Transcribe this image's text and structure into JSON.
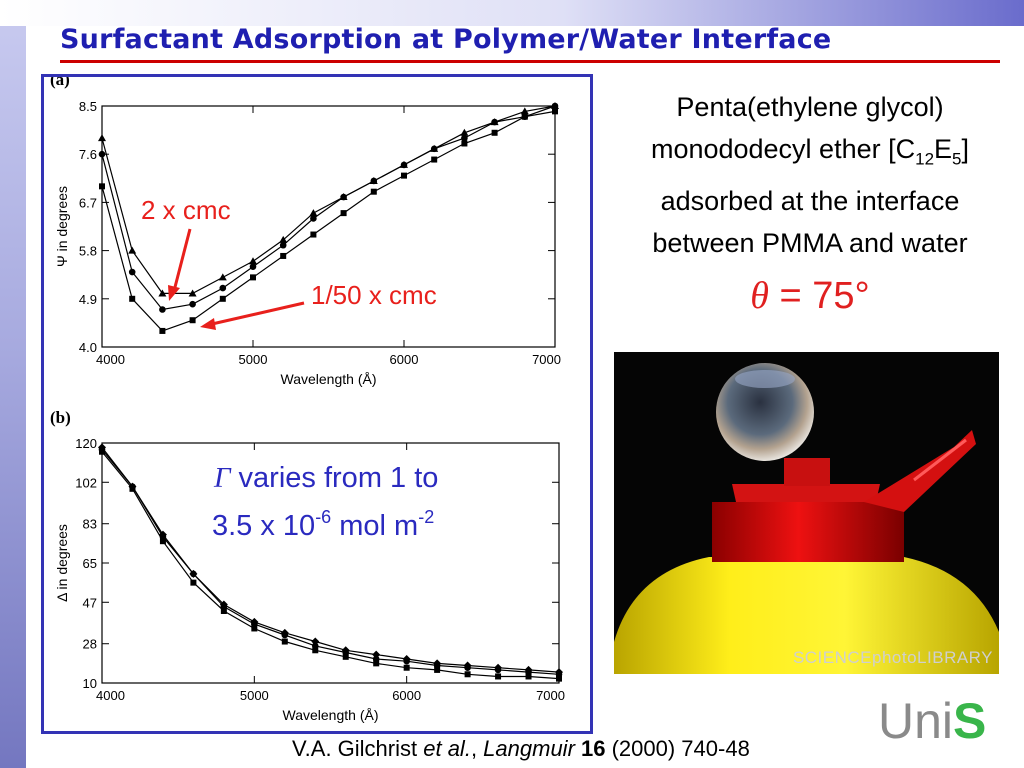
{
  "title": "Surfactant Adsorption at Polymer/Water Interface",
  "colors": {
    "title": "#1f1fb0",
    "frame": "#3333b5",
    "red_annotation": "#e8201c",
    "blue_annotation": "#2a2abf",
    "theta": "#e02020"
  },
  "description": {
    "line1": "Penta(ethylene glycol)",
    "line2_pre": "monododecyl ether [C",
    "line2_sub1": "12",
    "line2_mid": "E",
    "line2_sub2": "5",
    "line2_post": "]",
    "line3": "adsorbed at the interface",
    "line4": "between PMMA and water"
  },
  "contact_angle": {
    "symbol": "θ",
    "equals": "=",
    "value": "75°"
  },
  "photo": {
    "credit": "SCIENCEphotoLIBRARY"
  },
  "citation": {
    "authors": "V.A. Gilchrist ",
    "etal": "et al.",
    "sep": ", ",
    "journal": "Langmuir",
    "volume": " 16",
    "rest": " (2000) 740-48"
  },
  "logo": {
    "uni": "Uni",
    "s": "S"
  },
  "annotations": {
    "cmc2": "2 x cmc",
    "cmc50": "1/50 x cmc",
    "gamma_symbol": "Γ",
    "gamma_text1": " varies from 1 to",
    "gamma_text2_pre": "3.5 x 10",
    "gamma_sup1": "-6",
    "gamma_text2_mid": " mol m",
    "gamma_sup2": "-2"
  },
  "chart_data": [
    {
      "type": "line",
      "panel": "(a)",
      "xlabel": "Wavelength (Å)",
      "ylabel": "Ψ in degrees",
      "xlim": [
        4000,
        7000
      ],
      "ylim": [
        4.0,
        8.5
      ],
      "xticks": [
        "4000",
        "5000",
        "6000",
        "7000"
      ],
      "yticks": [
        "8.5",
        "7.6",
        "6.7",
        "5.8",
        "4.9",
        "4.0"
      ],
      "series": [
        {
          "marker": "triangle",
          "x": [
            4000,
            4200,
            4400,
            4600,
            4800,
            5000,
            5200,
            5400,
            5600,
            5800,
            6000,
            6200,
            6400,
            6600,
            6800,
            7000
          ],
          "y": [
            7.9,
            5.8,
            5.0,
            5.0,
            5.3,
            5.6,
            6.0,
            6.5,
            6.8,
            7.1,
            7.4,
            7.7,
            8.0,
            8.2,
            8.4,
            8.5
          ]
        },
        {
          "marker": "circle",
          "x": [
            4000,
            4200,
            4400,
            4600,
            4800,
            5000,
            5200,
            5400,
            5600,
            5800,
            6000,
            6200,
            6400,
            6600,
            6800,
            7000
          ],
          "y": [
            7.6,
            5.4,
            4.7,
            4.8,
            5.1,
            5.5,
            5.9,
            6.4,
            6.8,
            7.1,
            7.4,
            7.7,
            7.9,
            8.2,
            8.3,
            8.5
          ]
        },
        {
          "marker": "square",
          "x": [
            4000,
            4200,
            4400,
            4600,
            4800,
            5000,
            5200,
            5400,
            5600,
            5800,
            6000,
            6200,
            6400,
            6600,
            6800,
            7000
          ],
          "y": [
            7.0,
            4.9,
            4.3,
            4.5,
            4.9,
            5.3,
            5.7,
            6.1,
            6.5,
            6.9,
            7.2,
            7.5,
            7.8,
            8.0,
            8.3,
            8.4
          ]
        }
      ]
    },
    {
      "type": "line",
      "panel": "(b)",
      "xlabel": "Wavelength (Å)",
      "ylabel": "Δ in degrees",
      "xlim": [
        4000,
        7000
      ],
      "ylim": [
        10,
        120
      ],
      "xticks": [
        "4000",
        "5000",
        "6000",
        "7000"
      ],
      "yticks": [
        "120",
        "102",
        "83",
        "65",
        "47",
        "28",
        "10"
      ],
      "series": [
        {
          "marker": "diamond",
          "x": [
            4000,
            4200,
            4400,
            4600,
            4800,
            5000,
            5200,
            5400,
            5600,
            5800,
            6000,
            6200,
            6400,
            6600,
            6800,
            7000
          ],
          "y": [
            118,
            100,
            78,
            60,
            46,
            38,
            33,
            29,
            25,
            23,
            21,
            19,
            18,
            17,
            16,
            15
          ]
        },
        {
          "marker": "circle",
          "x": [
            4000,
            4200,
            4400,
            4600,
            4800,
            5000,
            5200,
            5400,
            5600,
            5800,
            6000,
            6200,
            6400,
            6600,
            6800,
            7000
          ],
          "y": [
            117,
            100,
            77,
            60,
            45,
            37,
            32,
            27,
            24,
            21,
            20,
            18,
            17,
            16,
            15,
            14
          ]
        },
        {
          "marker": "square",
          "x": [
            4000,
            4200,
            4400,
            4600,
            4800,
            5000,
            5200,
            5400,
            5600,
            5800,
            6000,
            6200,
            6400,
            6600,
            6800,
            7000
          ],
          "y": [
            116,
            99,
            75,
            56,
            43,
            35,
            29,
            25,
            22,
            19,
            17,
            16,
            14,
            13,
            13,
            12
          ]
        }
      ]
    }
  ]
}
